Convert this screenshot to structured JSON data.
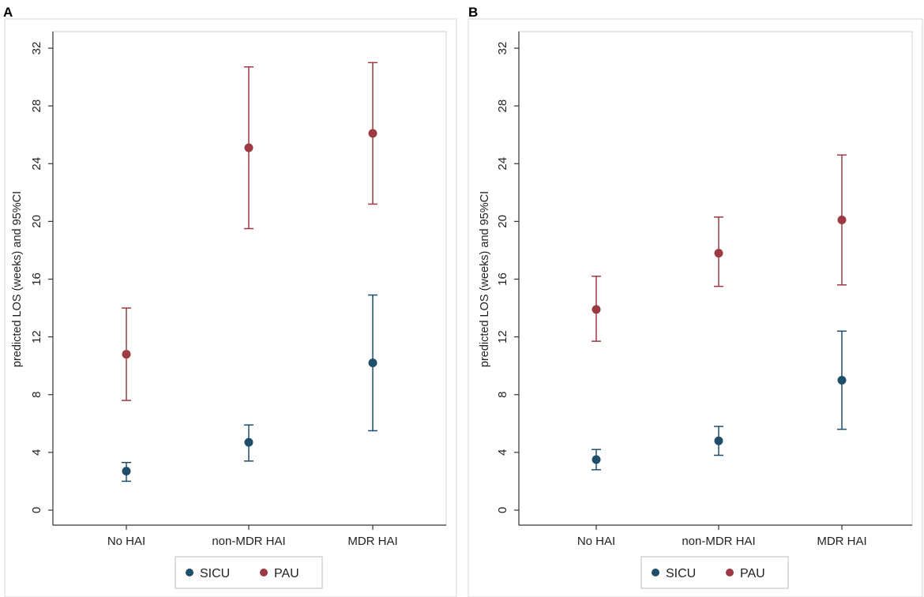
{
  "chart_data": [
    {
      "panel": "A",
      "type": "scatter",
      "subtype": "point-with-95%-confidence-interval",
      "categories": [
        "No HAI",
        "non-MDR HAI",
        "MDR HAI"
      ],
      "ylabel": "predicted LOS (weeks) and 95%CI",
      "xlabel": "",
      "ylim": [
        0,
        32
      ],
      "yticks": [
        0,
        4,
        8,
        12,
        16,
        20,
        24,
        28,
        32
      ],
      "grid": false,
      "legend_position": "bottom",
      "series": [
        {
          "name": "SICU",
          "color": "#1f4e6b",
          "values": [
            2.7,
            4.7,
            10.2
          ],
          "lower": [
            2.0,
            3.4,
            5.5
          ],
          "upper": [
            3.3,
            5.9,
            14.9
          ]
        },
        {
          "name": "PAU",
          "color": "#9b3a42",
          "values": [
            10.8,
            25.1,
            26.1
          ],
          "lower": [
            7.6,
            19.5,
            21.2
          ],
          "upper": [
            14.0,
            30.7,
            31.0
          ]
        }
      ]
    },
    {
      "panel": "B",
      "type": "scatter",
      "subtype": "point-with-95%-confidence-interval",
      "categories": [
        "No HAI",
        "non-MDR HAI",
        "MDR HAI"
      ],
      "ylabel": "predicted LOS (weeks) and 95%CI",
      "xlabel": "",
      "ylim": [
        0,
        32
      ],
      "yticks": [
        0,
        4,
        8,
        12,
        16,
        20,
        24,
        28,
        32
      ],
      "grid": false,
      "legend_position": "bottom",
      "series": [
        {
          "name": "SICU",
          "color": "#1f4e6b",
          "values": [
            3.5,
            4.8,
            9.0
          ],
          "lower": [
            2.8,
            3.8,
            5.6
          ],
          "upper": [
            4.2,
            5.8,
            12.4
          ]
        },
        {
          "name": "PAU",
          "color": "#9b3a42",
          "values": [
            13.9,
            17.8,
            20.1
          ],
          "lower": [
            11.7,
            15.5,
            15.6
          ],
          "upper": [
            16.2,
            20.3,
            24.6
          ]
        }
      ]
    }
  ]
}
